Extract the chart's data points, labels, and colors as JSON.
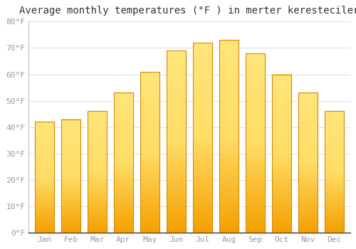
{
  "title": "Average monthly temperatures (°F ) in merter keresteciler",
  "months": [
    "Jan",
    "Feb",
    "Mar",
    "Apr",
    "May",
    "Jun",
    "Jul",
    "Aug",
    "Sep",
    "Oct",
    "Nov",
    "Dec"
  ],
  "values": [
    42,
    43,
    46,
    53,
    61,
    69,
    72,
    73,
    68,
    60,
    53,
    46
  ],
  "bar_color_top": "#FFDD66",
  "bar_color_bottom": "#F5A000",
  "bar_edge_color": "#D4880A",
  "background_color": "#FFFFFF",
  "grid_color": "#dddddd",
  "ylim": [
    0,
    80
  ],
  "yticks": [
    0,
    10,
    20,
    30,
    40,
    50,
    60,
    70,
    80
  ],
  "tick_label_color": "#999999",
  "title_color": "#333333",
  "title_fontsize": 10,
  "bar_width": 0.75
}
